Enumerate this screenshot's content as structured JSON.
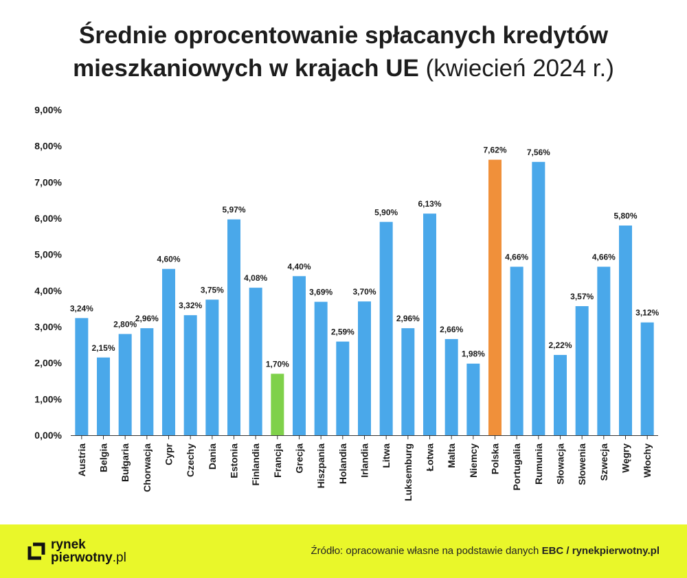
{
  "title": {
    "line1": "Średnie oprocentowanie spłacanych kredytów",
    "line2_bold": "mieszkaniowych w krajach UE",
    "line2_light": " (kwiecień 2024 r.)"
  },
  "chart_data": {
    "type": "bar",
    "title": "Średnie oprocentowanie spłacanych kredytów mieszkaniowych w krajach UE (kwiecień 2024 r.)",
    "xlabel": "",
    "ylabel": "",
    "ylim": [
      0,
      9
    ],
    "yticks": [
      0,
      1,
      2,
      3,
      4,
      5,
      6,
      7,
      8,
      9
    ],
    "ytick_labels": [
      "0,00%",
      "1,00%",
      "2,00%",
      "3,00%",
      "4,00%",
      "5,00%",
      "6,00%",
      "7,00%",
      "8,00%",
      "9,00%"
    ],
    "grid": false,
    "categories": [
      "Austria",
      "Belgia",
      "Bułgaria",
      "Chorwacja",
      "Cypr",
      "Czechy",
      "Dania",
      "Estonia",
      "Finlandia",
      "Francja",
      "Grecja",
      "Hiszpania",
      "Holandia",
      "Irlandia",
      "Litwa",
      "Luksemburg",
      "Łotwa",
      "Malta",
      "Niemcy",
      "Polska",
      "Portugalia",
      "Rumunia",
      "Słowacja",
      "Słowenia",
      "Szwecja",
      "Węgry",
      "Włochy"
    ],
    "values": [
      3.24,
      2.15,
      2.8,
      2.96,
      4.6,
      3.32,
      3.75,
      5.97,
      4.08,
      1.7,
      4.4,
      3.69,
      2.59,
      3.7,
      5.9,
      2.96,
      6.13,
      2.66,
      1.98,
      7.62,
      4.66,
      7.56,
      2.22,
      3.57,
      4.66,
      5.8,
      3.12
    ],
    "value_labels": [
      "3,24%",
      "2,15%",
      "2,80%",
      "2,96%",
      "4,60%",
      "3,32%",
      "3,75%",
      "5,97%",
      "4,08%",
      "1,70%",
      "4,40%",
      "3,69%",
      "2,59%",
      "3,70%",
      "5,90%",
      "2,96%",
      "6,13%",
      "2,66%",
      "1,98%",
      "7,62%",
      "4,66%",
      "7,56%",
      "2,22%",
      "3,57%",
      "4,66%",
      "5,80%",
      "3,12%"
    ],
    "colors": {
      "default": "#4aa8ea",
      "highlight_max": "#f0903a",
      "highlight_min": "#7fd14a"
    },
    "highlight": {
      "Polska": "highlight_max",
      "Francja": "highlight_min"
    }
  },
  "footer": {
    "logo_line1": "rynek",
    "logo_line2_bold": "pierwotny",
    "logo_line2_thin": ".pl",
    "source_prefix": "Źródło: opracowanie własne na podstawie danych ",
    "source_bold": "EBC / rynekpierwotny.pl",
    "background": "#e9f72a"
  }
}
